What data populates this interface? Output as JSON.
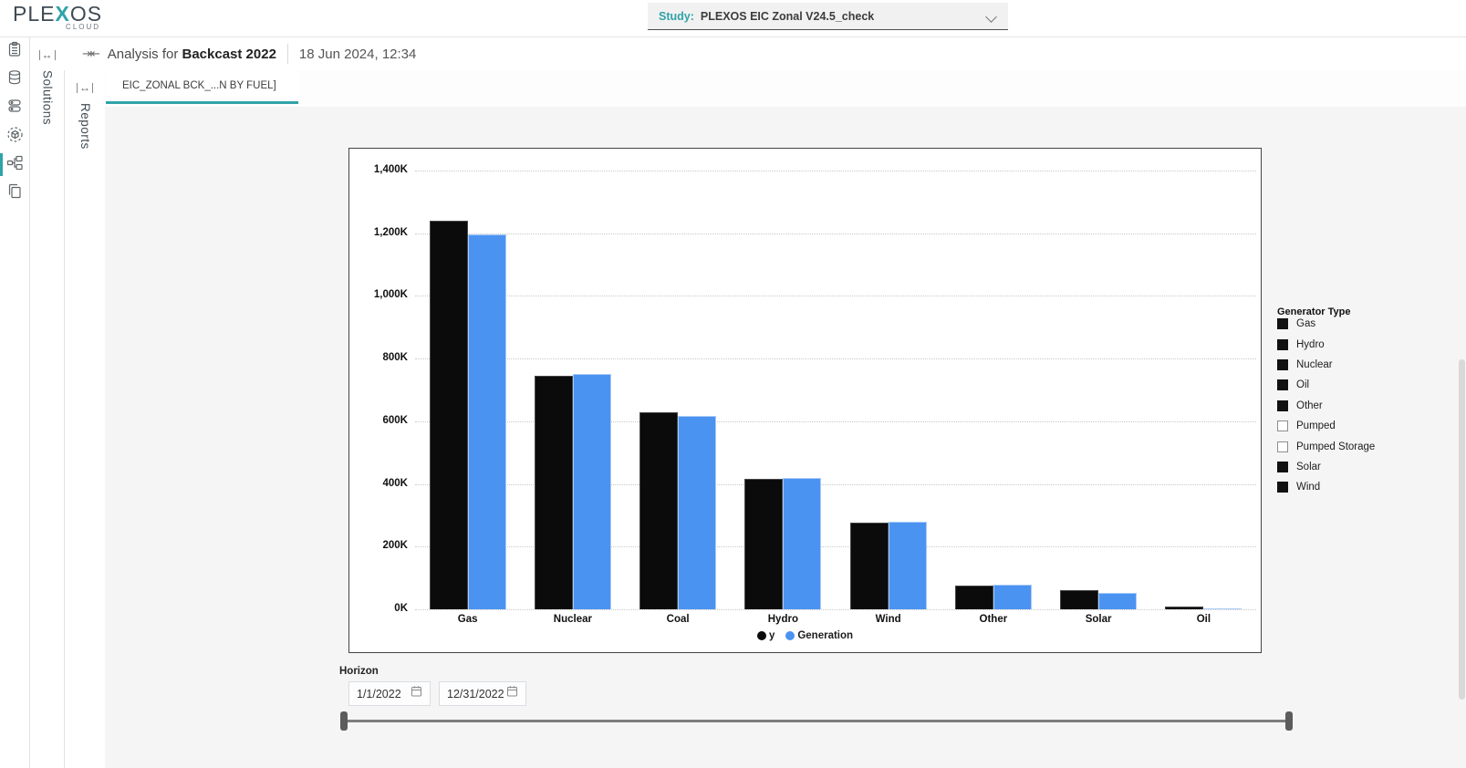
{
  "topbar": {
    "logo": {
      "part1": "PLE",
      "x": "X",
      "part2": "OS",
      "sub": "CLOUD"
    },
    "study": {
      "label": "Study:",
      "value": "PLEXOS EIC Zonal V24.5_check",
      "chevron_icon": "chevron-down-icon"
    }
  },
  "header": {
    "collapse_icon": "collapse-panel-icon",
    "title_prefix": "Analysis for",
    "title_bold": "Backcast 2022",
    "timestamp": "18 Jun 2024, 12:34"
  },
  "sidebar": {
    "rail_icons": [
      "clipboard-icon",
      "database-icon",
      "datastore-icon",
      "model-icon",
      "workflow-icon",
      "copy-icon"
    ],
    "active_icon": "workflow-icon",
    "solutions_label": "Solutions",
    "reports_label": "Reports",
    "expand_icon": "expand-panel-icon"
  },
  "tabs": [
    {
      "label": "EIC_ZONAL BCK_...N BY FUEL]",
      "active": true
    }
  ],
  "chart_data": {
    "type": "bar",
    "title": "",
    "categories": [
      "Gas",
      "Nuclear",
      "Coal",
      "Hydro",
      "Wind",
      "Other",
      "Solar",
      "Oil"
    ],
    "series": [
      {
        "name": "y",
        "color": "#0b0b0b",
        "values": [
          1240,
          745,
          628,
          416,
          278,
          75,
          61,
          8
        ]
      },
      {
        "name": "Generation",
        "color": "#4b93f1",
        "values": [
          1195,
          752,
          616,
          419,
          280,
          78,
          52,
          3
        ]
      }
    ],
    "value_unit": "K",
    "ylim": [
      0,
      1400
    ],
    "ytick_step": 200,
    "ytick_labels": [
      "0K",
      "200K",
      "400K",
      "600K",
      "800K",
      "1,000K",
      "1,200K",
      "1,400K"
    ],
    "grid": "dotted-horizontal",
    "legend_position": "bottom"
  },
  "generator_type": {
    "title": "Generator Type",
    "items": [
      {
        "label": "Gas",
        "checked": true
      },
      {
        "label": "Hydro",
        "checked": true
      },
      {
        "label": "Nuclear",
        "checked": true
      },
      {
        "label": "Oil",
        "checked": true
      },
      {
        "label": "Other",
        "checked": true
      },
      {
        "label": "Pumped",
        "checked": false
      },
      {
        "label": "Pumped Storage",
        "checked": false
      },
      {
        "label": "Solar",
        "checked": true
      },
      {
        "label": "Wind",
        "checked": true
      }
    ]
  },
  "horizon": {
    "label": "Horizon",
    "start_value": "1/1/2022",
    "end_value": "12/31/2022",
    "calendar_icon": "calendar-icon"
  },
  "colors": {
    "accent_teal": "#2fa3a8",
    "bar_black": "#0b0b0b",
    "bar_blue": "#4b93f1",
    "slider_gray": "#7d7d7d"
  }
}
